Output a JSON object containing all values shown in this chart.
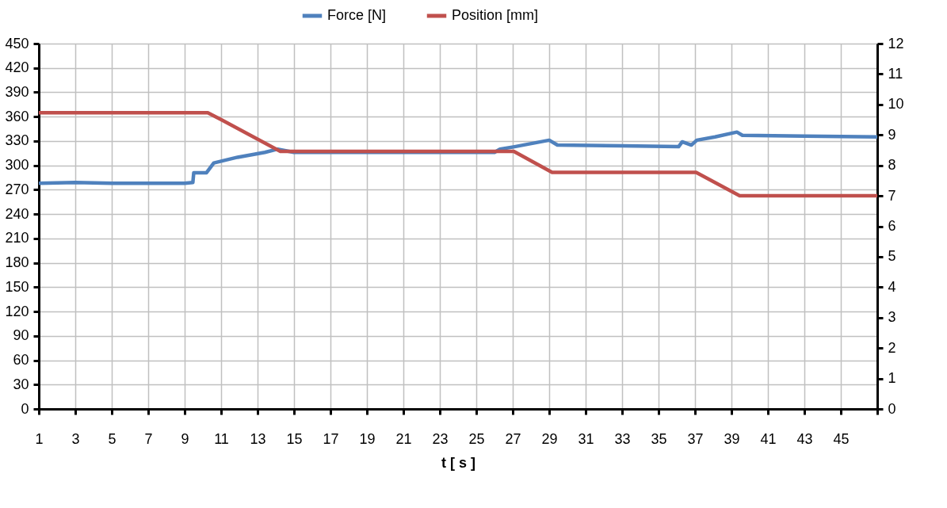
{
  "chart_data": {
    "type": "line",
    "xlabel": "t [ s ]",
    "legend": "top",
    "grid": true,
    "line_style": "solid",
    "marker": "none",
    "xlim": [
      1,
      47
    ],
    "xticks": [
      1,
      3,
      5,
      7,
      9,
      11,
      13,
      15,
      17,
      19,
      21,
      23,
      25,
      27,
      29,
      31,
      33,
      35,
      37,
      39,
      41,
      43,
      45,
      {
        "value": 47,
        "label": null
      }
    ],
    "ylim": [
      0,
      450
    ],
    "yticks": [
      0,
      30,
      60,
      90,
      120,
      150,
      180,
      210,
      240,
      270,
      300,
      330,
      360,
      390,
      420,
      450
    ],
    "y2lim": [
      0,
      12
    ],
    "y2ticks": [
      0,
      1,
      2,
      3,
      4,
      5,
      6,
      7,
      8,
      9,
      10,
      11,
      12
    ],
    "series": [
      {
        "name": "Force [N]",
        "color": "#4f81bd",
        "x": [
          1,
          3,
          5,
          7,
          9,
          9.45,
          9.5,
          10.2,
          10.6,
          11.9,
          13.4,
          14.1,
          15,
          20,
          26,
          26.3,
          27.1,
          29,
          29.45,
          33,
          36.1,
          36.3,
          36.8,
          37.1,
          38.1,
          39.3,
          39.6,
          43,
          47
        ],
        "values": [
          278,
          279,
          278,
          278,
          278,
          279,
          291,
          291,
          303,
          310,
          316,
          320,
          316,
          316,
          316,
          320,
          323,
          331,
          325,
          324,
          323,
          329,
          325,
          331,
          335,
          341,
          337,
          336,
          335
        ]
      },
      {
        "name": "Position [mm]",
        "color": "#c0504d",
        "axis": "y2",
        "x": [
          1,
          10.27,
          11.07,
          14.25,
          27.06,
          29.16,
          37.06,
          39.45,
          47
        ],
        "values": [
          9.73,
          9.73,
          9.48,
          8.46,
          8.46,
          7.77,
          7.77,
          7.0,
          7.0
        ]
      }
    ]
  }
}
